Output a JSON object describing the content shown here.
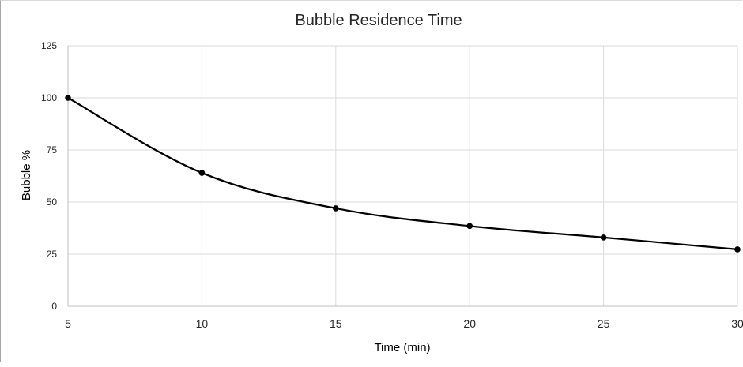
{
  "chart_data": {
    "type": "line",
    "title": "Bubble Residence Time",
    "xlabel": "Time (min)",
    "ylabel": "Bubble %",
    "x": [
      5,
      10,
      15,
      20,
      25,
      30
    ],
    "series": [
      {
        "values": [
          100,
          64,
          47,
          38.5,
          33,
          27.3
        ]
      }
    ],
    "xlim": [
      5,
      30
    ],
    "ylim": [
      0,
      125
    ],
    "xticks": [
      "5",
      "10",
      "15",
      "20",
      "25",
      "30"
    ],
    "yticks": [
      "0",
      "25",
      "50",
      "75",
      "100",
      "125"
    ],
    "grid": true,
    "smooth": true,
    "legend": "none",
    "colors": {
      "line": "#000000",
      "grid": "#d9d9d9",
      "axis": "#bfbfbf"
    }
  }
}
